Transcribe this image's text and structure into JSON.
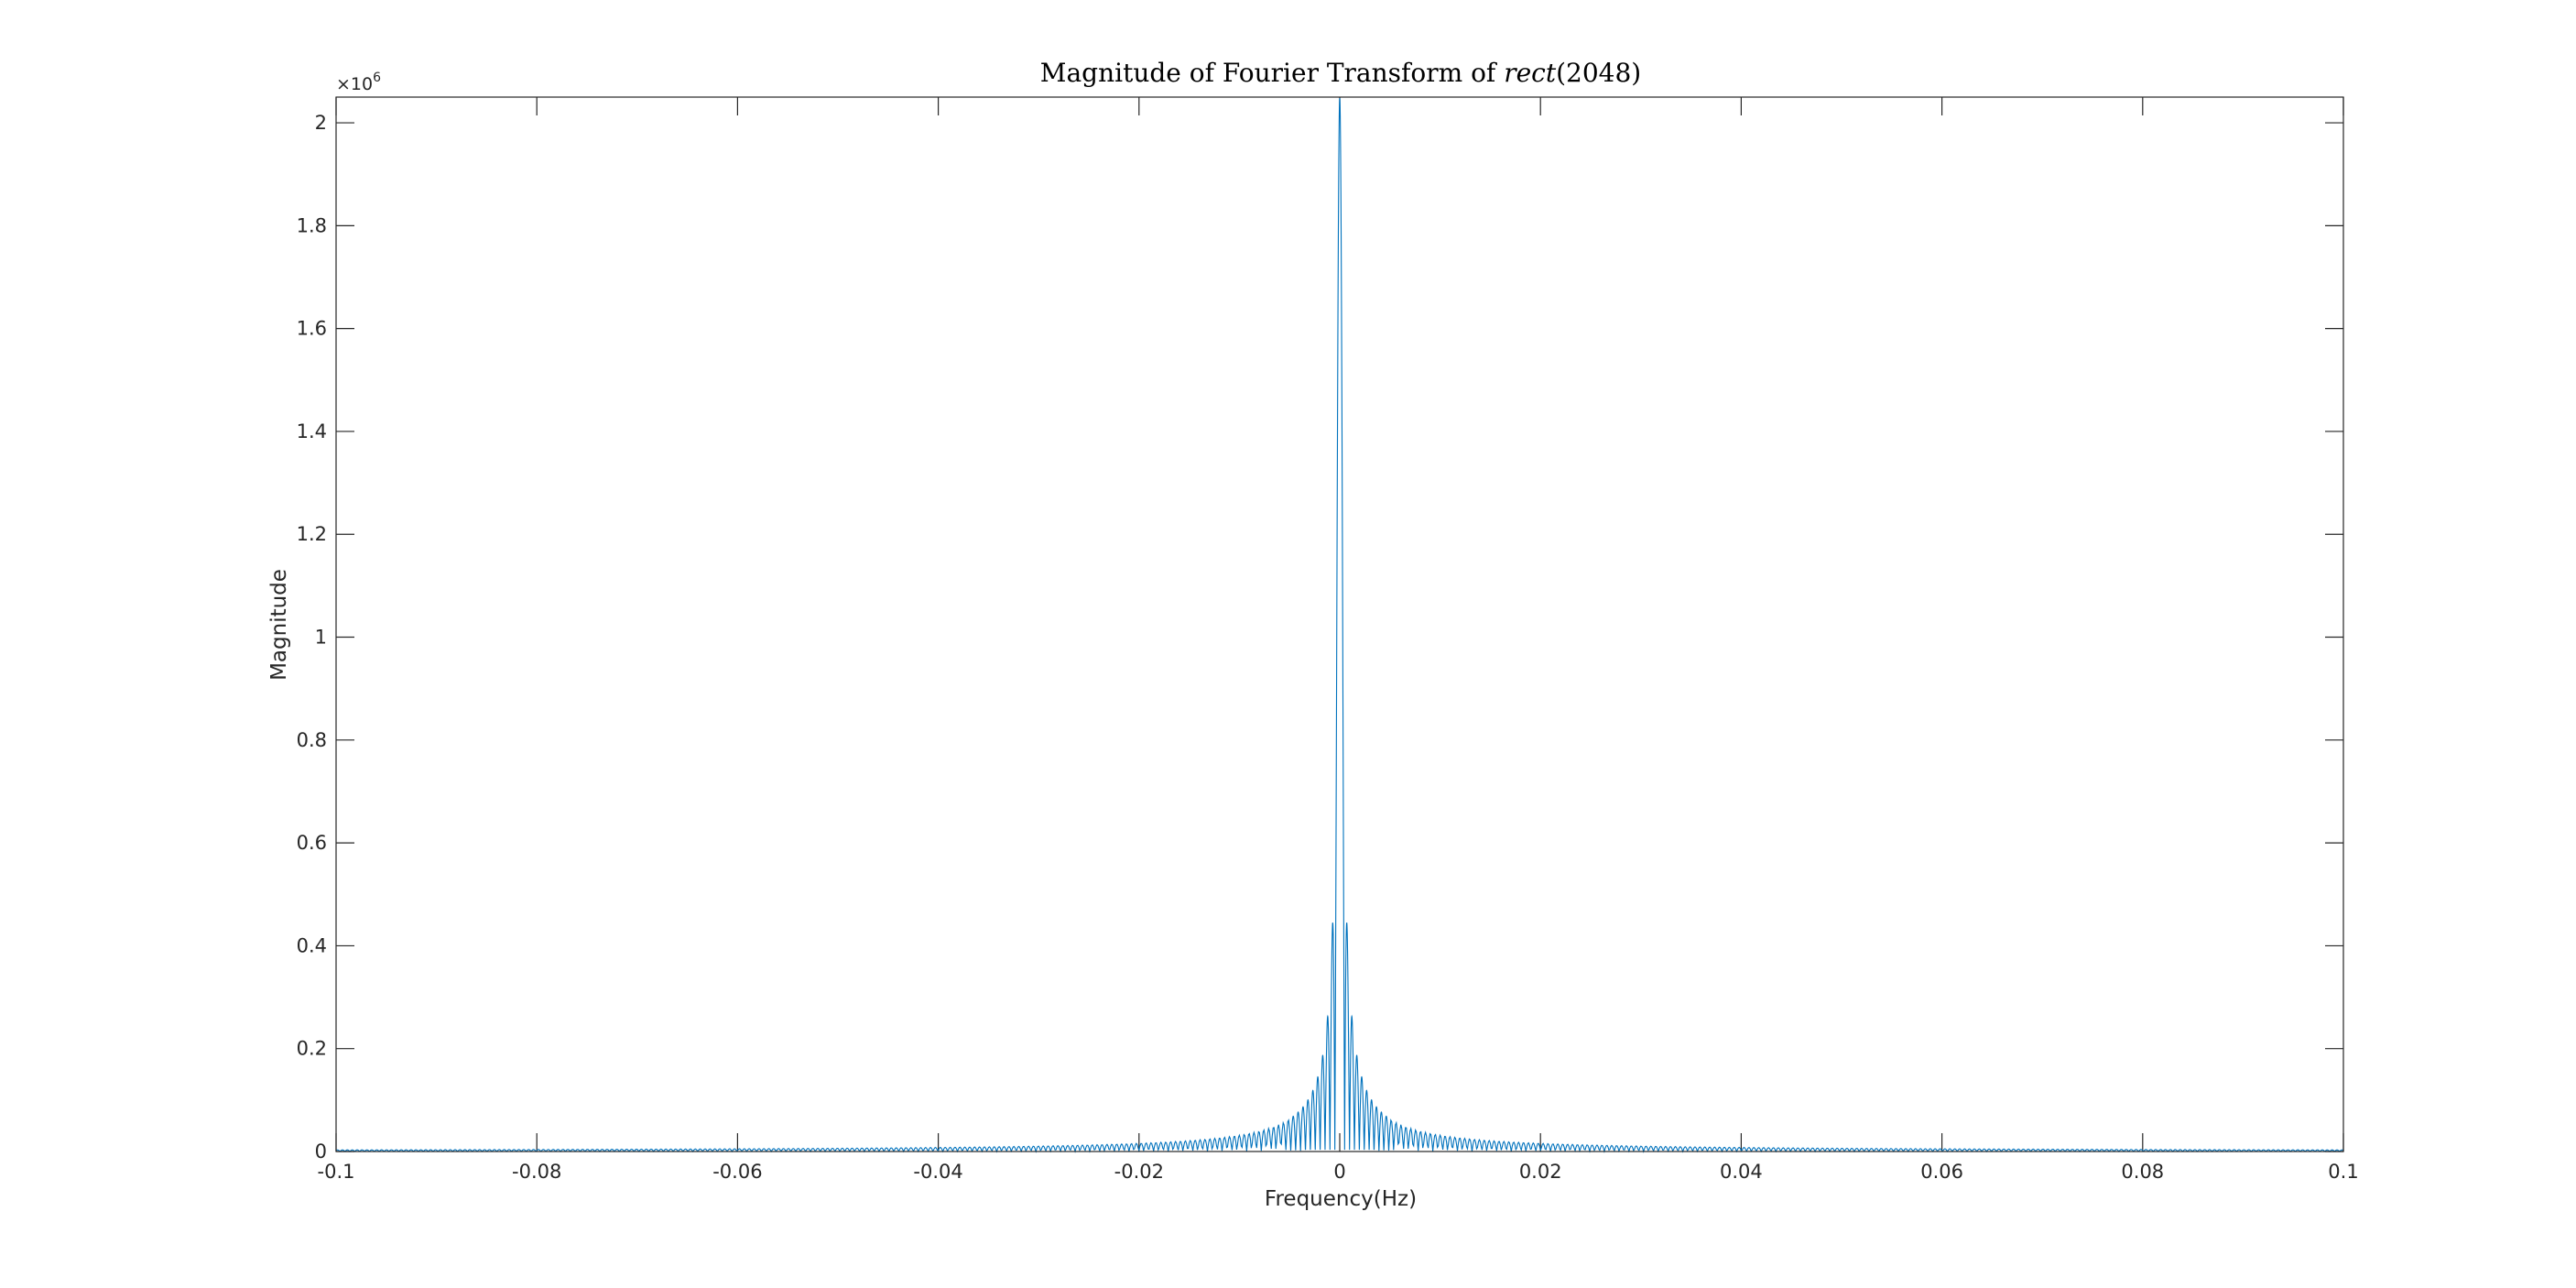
{
  "chart_data": {
    "type": "line",
    "title": "Magnitude of Fourier Transform of rect(2048)",
    "title_parts": {
      "prefix": "Magnitude of Fourier Transform of ",
      "math_func": "rect",
      "math_arg": "(2048)"
    },
    "xlabel": "Frequency(Hz)",
    "ylabel": "Magnitude",
    "y_exponent": {
      "base": "×10",
      "power": "6"
    },
    "xlim": [
      -0.1,
      0.1
    ],
    "ylim": [
      0,
      2.05
    ],
    "y_multiplier": 1000000,
    "x_ticks": [
      -0.1,
      -0.08,
      -0.06,
      -0.04,
      -0.02,
      0,
      0.02,
      0.04,
      0.06,
      0.08,
      0.1
    ],
    "x_tick_labels": [
      "-0.1",
      "-0.08",
      "-0.06",
      "-0.04",
      "-0.02",
      "0",
      "0.02",
      "0.04",
      "0.06",
      "0.08",
      "0.1"
    ],
    "y_ticks": [
      0,
      0.2,
      0.4,
      0.6,
      0.8,
      1,
      1.2,
      1.4,
      1.6,
      1.8,
      2
    ],
    "y_tick_labels": [
      "0",
      "0.2",
      "0.4",
      "0.6",
      "0.8",
      "1",
      "1.2",
      "1.4",
      "1.6",
      "1.8",
      "2"
    ],
    "grid": false,
    "line_color": "#0072BD",
    "series": [
      {
        "rect_width": 2048,
        "peak_value": 2048000,
        "peak_frequency": 0,
        "first_null_frequency": 0.000488,
        "approx_points": [
          {
            "x": -0.1,
            "y": 0
          },
          {
            "x": -0.04,
            "y": 0.008
          },
          {
            "x": -0.02,
            "y": 0.016
          },
          {
            "x": -0.01,
            "y": 0.033
          },
          {
            "x": -0.005,
            "y": 0.065
          },
          {
            "x": -0.002,
            "y": 0.16
          },
          {
            "x": -0.00075,
            "y": 0.43
          },
          {
            "x": 0,
            "y": 2.048
          },
          {
            "x": 0.00075,
            "y": 0.43
          },
          {
            "x": 0.002,
            "y": 0.16
          },
          {
            "x": 0.005,
            "y": 0.065
          },
          {
            "x": 0.01,
            "y": 0.033
          },
          {
            "x": 0.02,
            "y": 0.016
          },
          {
            "x": 0.04,
            "y": 0.008
          },
          {
            "x": 0.1,
            "y": 0
          }
        ]
      }
    ]
  }
}
